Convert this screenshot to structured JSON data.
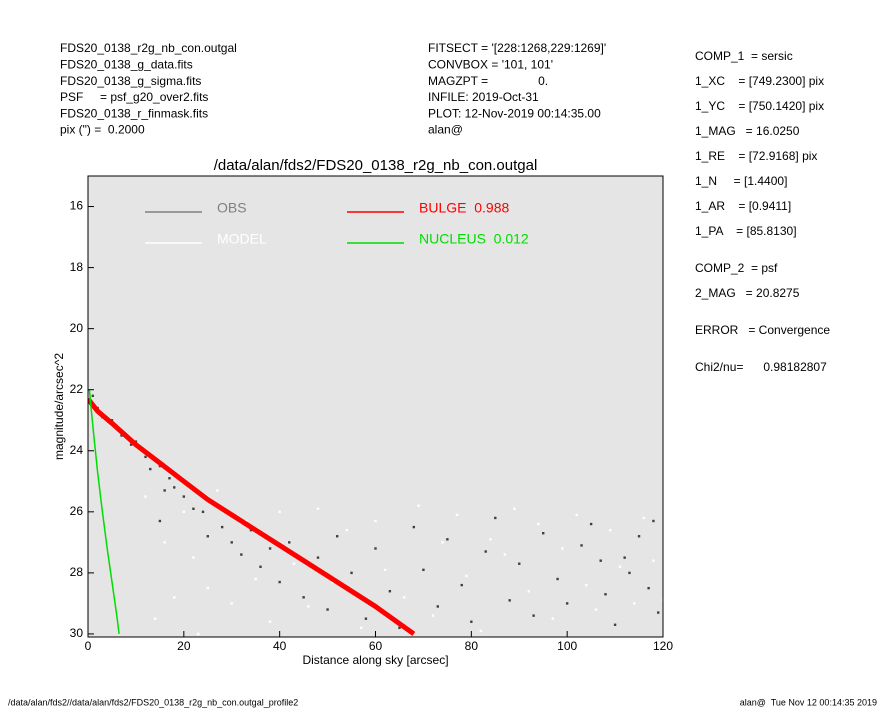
{
  "info_left": [
    "FDS20_0138_r2g_nb_con.outgal",
    "FDS20_0138_g_data.fits",
    "FDS20_0138_g_sigma.fits",
    "PSF     = psf_g20_over2.fits",
    "FDS20_0138_r_finmask.fits",
    "pix (\") =  0.2000"
  ],
  "info_middle": [
    "FITSECT = '[228:1268,229:1269]'",
    "CONVBOX = '101, 101'",
    "MAGZPT =               0.",
    "INFILE: 2019-Oct-31",
    "PLOT: 12-Nov-2019 00:14:35.00",
    "alan@"
  ],
  "info_right": [
    "COMP_1  = sersic",
    "1_XC    = [749.2300] pix",
    "1_YC    = [750.1420] pix",
    "1_MAG   = 16.0250",
    "1_RE    = [72.9168] pix",
    "1_N     = [1.4400]",
    "1_AR    = [0.9411]",
    "1_PA    = [85.8130]",
    "COMP_2  = psf",
    "2_MAG   = 20.8275",
    "ERROR   = Convergence",
    "Chi2/nu=      0.98182807"
  ],
  "footer_left": "/data/alan/fds2//data/alan/fds2/FDS20_0138_r2g_nb_con.outgal_profile2",
  "footer_right": "alan@  Tue Nov 12 00:14:35 2019",
  "chart_data": {
    "type": "scatter",
    "title": "/data/alan/fds2/FDS20_0138_r2g_nb_con.outgal",
    "x_label": "Distance along sky [arcsec]",
    "y_label": "magnitude/arcsec^2",
    "xlim": [
      0,
      120
    ],
    "xticks": [
      0,
      20,
      40,
      60,
      80,
      100,
      120
    ],
    "ylim": [
      15,
      30.1
    ],
    "yticks": [
      16,
      18,
      20,
      22,
      24,
      26,
      28,
      30
    ],
    "y_inverted": true,
    "background": "#e5e5e5",
    "series": [
      {
        "name": "OBS",
        "color": "#808080",
        "mark": "points",
        "point_color": "#404040",
        "x": [
          1,
          2,
          3,
          5,
          7,
          9,
          10,
          12,
          13,
          15,
          16,
          17,
          15,
          18,
          20,
          22,
          24,
          25,
          28,
          30,
          32,
          34,
          36,
          38,
          40,
          42,
          45,
          48,
          50,
          52,
          55,
          58,
          60,
          63,
          65,
          68,
          70,
          73,
          75,
          78,
          80,
          83,
          85,
          88,
          90,
          93,
          95,
          98,
          100,
          103,
          105,
          108,
          110,
          112,
          115,
          117,
          119,
          118,
          113,
          107
        ],
        "values": [
          22.2,
          22.6,
          22.9,
          23.0,
          23.5,
          23.8,
          23.7,
          24.2,
          24.6,
          24.5,
          25.3,
          24.9,
          26.3,
          25.2,
          25.5,
          25.9,
          26.0,
          26.8,
          26.5,
          27.0,
          27.4,
          26.6,
          27.8,
          27.2,
          28.3,
          27.0,
          28.8,
          27.5,
          29.2,
          26.8,
          28.0,
          29.5,
          27.2,
          28.6,
          29.8,
          26.5,
          27.9,
          29.1,
          26.9,
          28.4,
          29.6,
          27.3,
          26.2,
          28.9,
          27.7,
          29.4,
          26.7,
          28.2,
          29.0,
          27.1,
          26.4,
          28.7,
          29.7,
          27.5,
          26.8,
          28.5,
          29.3,
          26.3,
          28.0,
          27.6
        ]
      },
      {
        "name": "MODEL",
        "color": "#ffffff",
        "mark": "points",
        "point_color": "#ffffff",
        "x": [
          20,
          22,
          25,
          27,
          30,
          33,
          35,
          38,
          40,
          43,
          46,
          48,
          51,
          54,
          57,
          60,
          62,
          66,
          69,
          72,
          74,
          77,
          79,
          82,
          84,
          87,
          89,
          92,
          94,
          97,
          99,
          102,
          104,
          106,
          109,
          111,
          114,
          116,
          118,
          120,
          12,
          16,
          18,
          14,
          23
        ],
        "values": [
          26.0,
          27.5,
          28.5,
          25.3,
          29.0,
          26.3,
          28.2,
          29.6,
          26.0,
          27.7,
          29.1,
          25.9,
          28.3,
          26.6,
          29.8,
          26.3,
          27.9,
          28.8,
          25.8,
          29.4,
          27.0,
          26.1,
          28.1,
          29.9,
          26.9,
          27.4,
          25.9,
          28.6,
          26.4,
          29.5,
          27.2,
          26.1,
          28.4,
          29.2,
          26.6,
          27.8,
          29.0,
          26.2,
          27.6,
          28.9,
          25.5,
          27.0,
          28.8,
          29.5,
          30.0
        ]
      },
      {
        "name": "BULGE  0.988",
        "color": "#ff0000",
        "mark": "line",
        "x": [
          0,
          2,
          5,
          10,
          15,
          20,
          25,
          30,
          40,
          50,
          60,
          68
        ],
        "values": [
          22.3,
          22.7,
          23.1,
          23.8,
          24.4,
          25.0,
          25.6,
          26.1,
          27.1,
          28.1,
          29.1,
          30.0
        ]
      },
      {
        "name": "NUCLEUS  0.012",
        "color": "#00dd00",
        "mark": "line",
        "x": [
          0.3,
          0.7,
          1.2,
          2,
          3,
          4,
          5,
          6,
          6.5
        ],
        "values": [
          22.0,
          22.7,
          23.5,
          24.7,
          26.0,
          27.2,
          28.3,
          29.4,
          30.0
        ]
      }
    ]
  }
}
